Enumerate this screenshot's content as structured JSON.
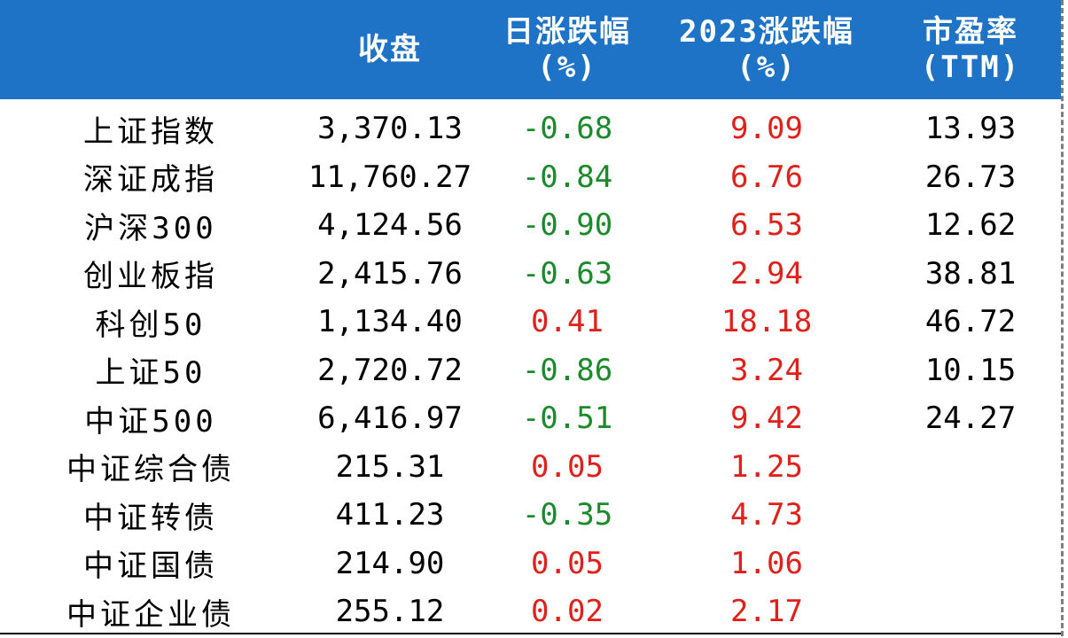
{
  "colors": {
    "header_bg": "#1e73c6",
    "header_text": "#ffffff",
    "negative": "#1a8a2a",
    "positive": "#e0201b",
    "neutral": "#000000"
  },
  "header": {
    "close": "收盘",
    "day_change_1": "日涨跌幅",
    "day_change_2": "(%)",
    "ytd_change_1": "2023涨跌幅",
    "ytd_change_2": "(%)",
    "pe_1": "市盈率",
    "pe_2": "(TTM)"
  },
  "rows": [
    {
      "name": "上证指数",
      "close": "3,370.13",
      "day": "-0.68",
      "ytd": "9.09",
      "pe": "13.93"
    },
    {
      "name": "深证成指",
      "close": "11,760.27",
      "day": "-0.84",
      "ytd": "6.76",
      "pe": "26.73"
    },
    {
      "name": "沪深300",
      "close": "4,124.56",
      "day": "-0.90",
      "ytd": "6.53",
      "pe": "12.62"
    },
    {
      "name": "创业板指",
      "close": "2,415.76",
      "day": "-0.63",
      "ytd": "2.94",
      "pe": "38.81"
    },
    {
      "name": "科创50",
      "close": "1,134.40",
      "day": "0.41",
      "ytd": "18.18",
      "pe": "46.72"
    },
    {
      "name": "上证50",
      "close": "2,720.72",
      "day": "-0.86",
      "ytd": "3.24",
      "pe": "10.15"
    },
    {
      "name": "中证500",
      "close": "6,416.97",
      "day": "-0.51",
      "ytd": "9.42",
      "pe": "24.27"
    },
    {
      "name": "中证综合债",
      "close": "215.31",
      "day": "0.05",
      "ytd": "1.25",
      "pe": ""
    },
    {
      "name": "中证转债",
      "close": "411.23",
      "day": "-0.35",
      "ytd": "4.73",
      "pe": ""
    },
    {
      "name": "中证国债",
      "close": "214.90",
      "day": "0.05",
      "ytd": "1.06",
      "pe": ""
    },
    {
      "name": "中证企业债",
      "close": "255.12",
      "day": "0.02",
      "ytd": "2.17",
      "pe": ""
    }
  ]
}
